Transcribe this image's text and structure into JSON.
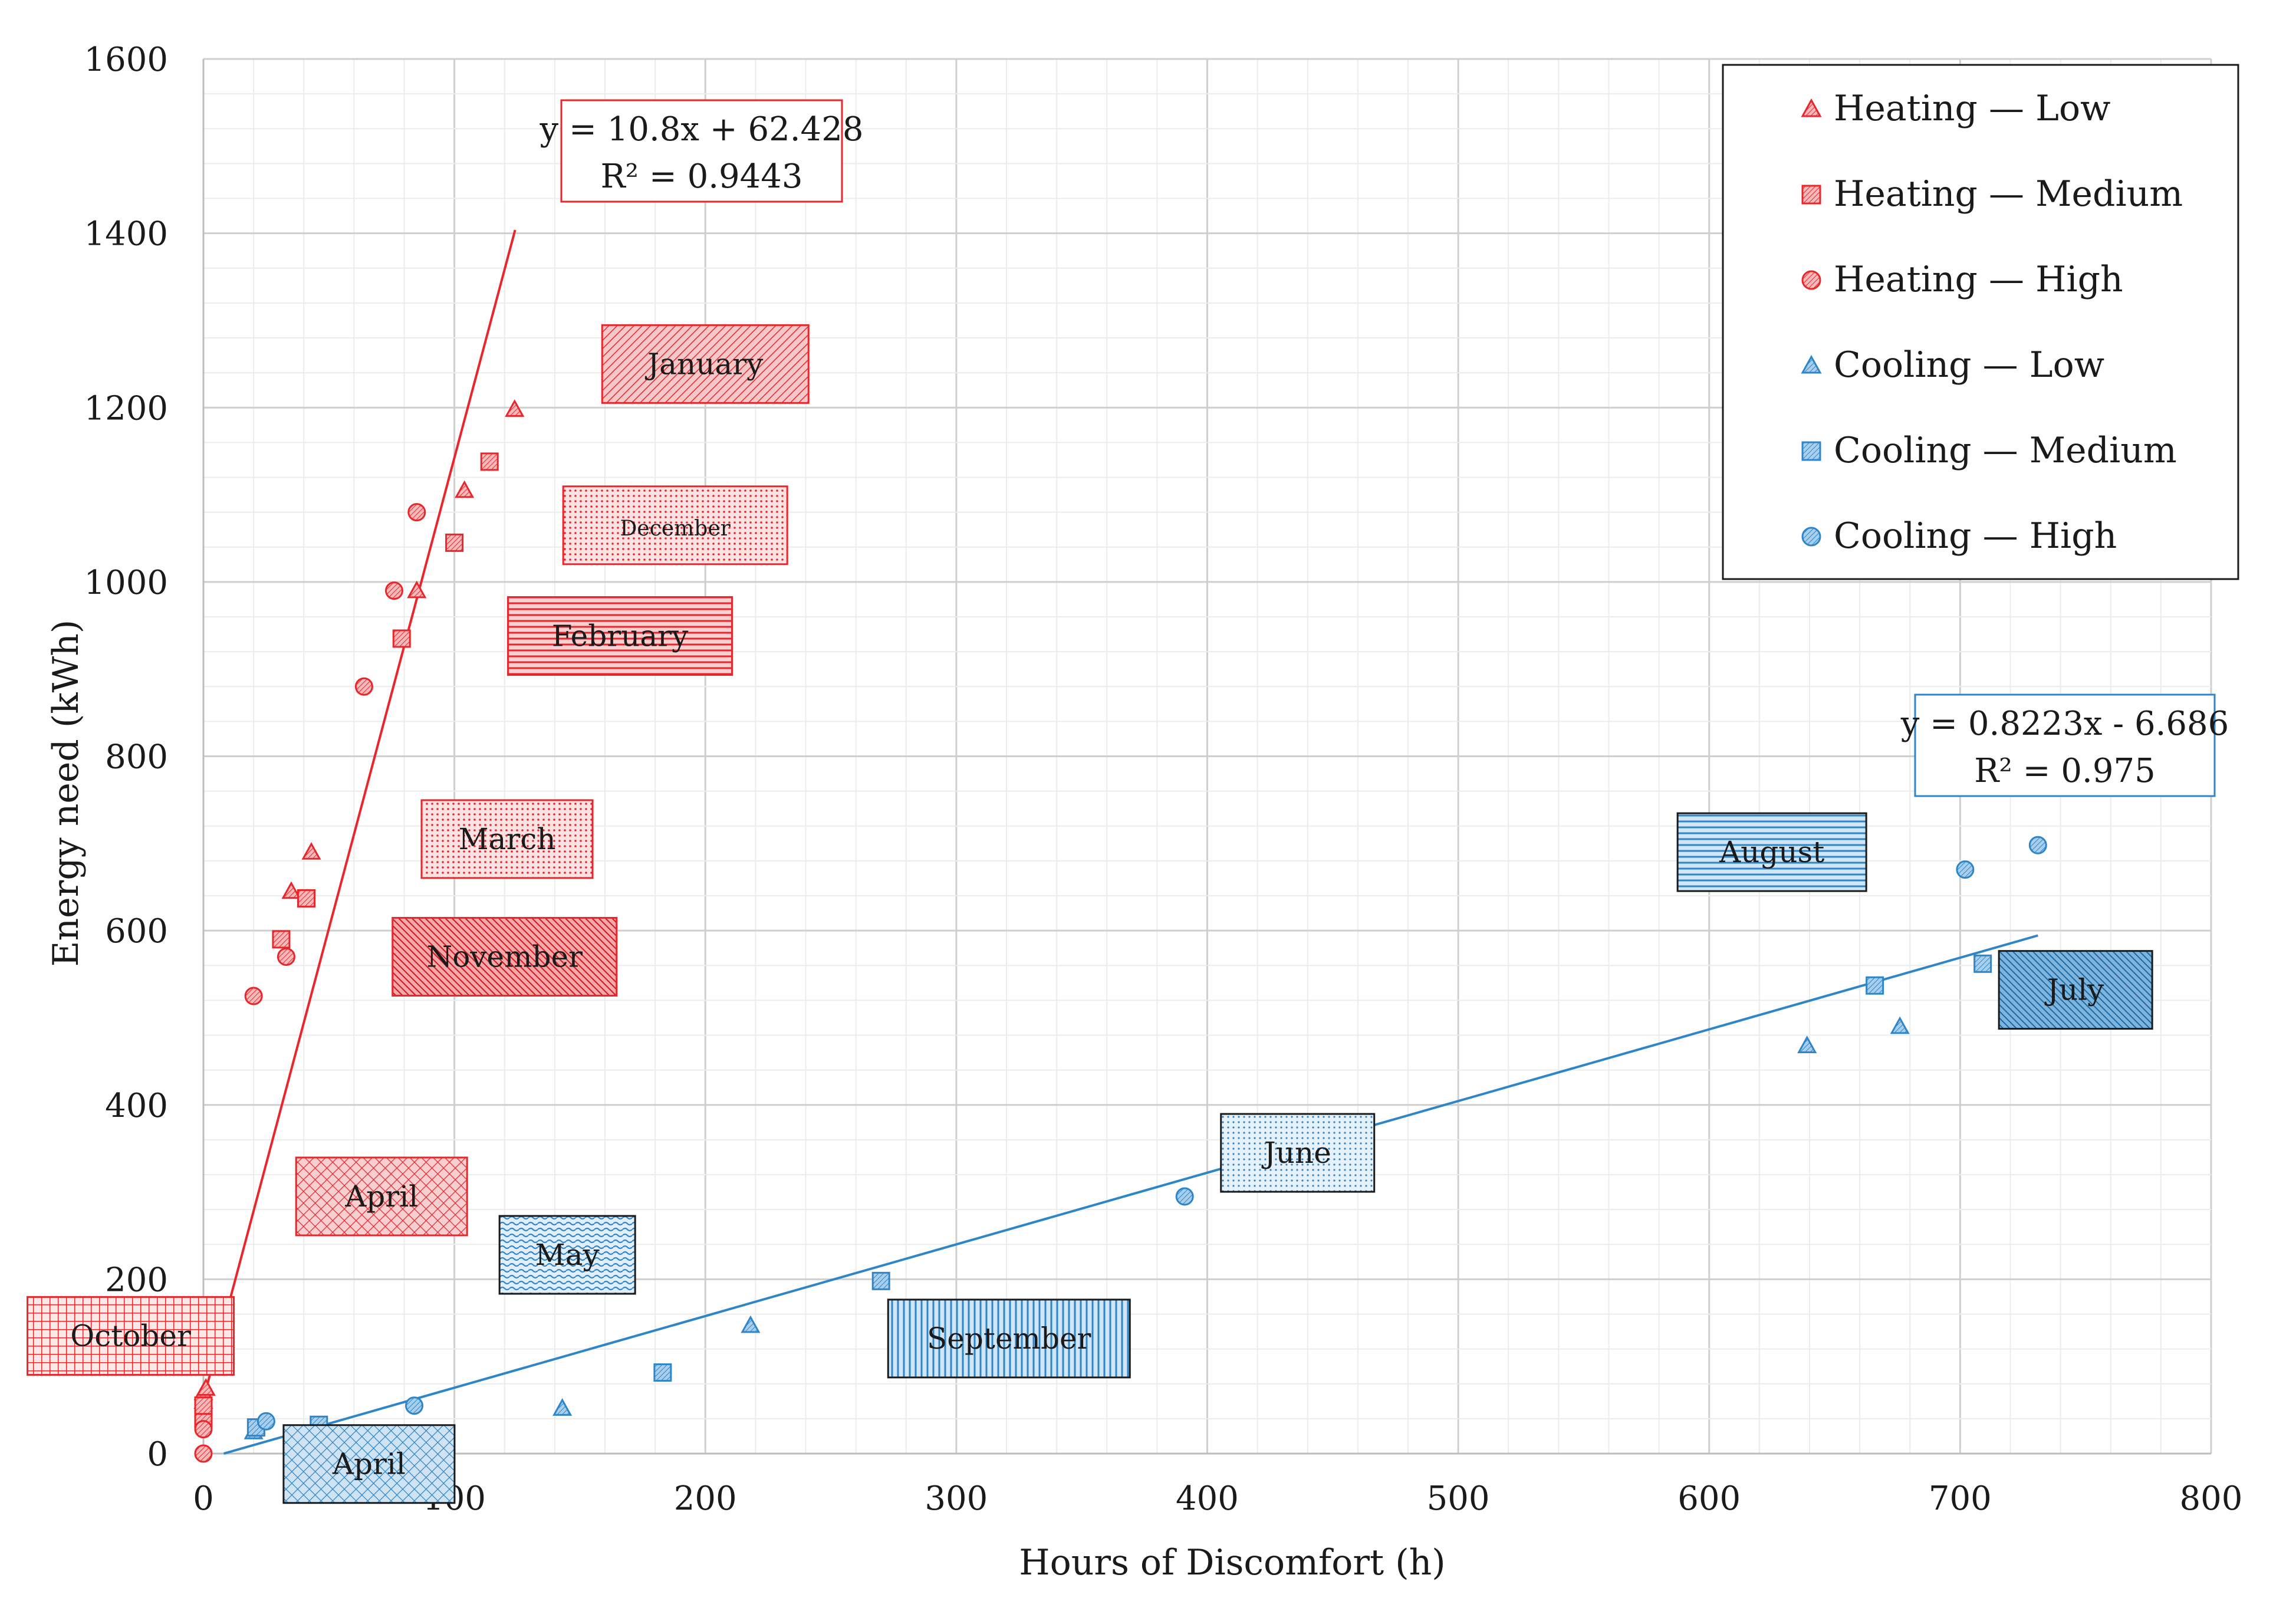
{
  "chart_data": {
    "type": "scatter",
    "xlabel": "Hours of Discomfort (h)",
    "ylabel": "Energy need (kWh)",
    "xlim": [
      0,
      800
    ],
    "ylim": [
      0,
      1600
    ],
    "xticks": [
      0,
      100,
      200,
      300,
      400,
      500,
      600,
      700,
      800
    ],
    "yticks": [
      0,
      200,
      400,
      600,
      800,
      1000,
      1200,
      1400,
      1600
    ],
    "grid": true,
    "legend_position": "top-right",
    "colors": {
      "heating": "#e8262b",
      "cooling": "#2e86c8"
    },
    "series": [
      {
        "name": "Heating",
        "level": "Low",
        "label": "Heating  —  Low",
        "group": "heating",
        "marker": "triangle",
        "points": [
          [
            0,
            60
          ],
          [
            0,
            70
          ],
          [
            1,
            75
          ],
          [
            35,
            645
          ],
          [
            43,
            690
          ],
          [
            85,
            990
          ],
          [
            104,
            1105
          ],
          [
            124,
            1198
          ]
        ]
      },
      {
        "name": "Heating",
        "level": "Medium",
        "label": "Heating  —  Medium",
        "group": "heating",
        "marker": "square",
        "points": [
          [
            0,
            40
          ],
          [
            0,
            55
          ],
          [
            31,
            590
          ],
          [
            41,
            637
          ],
          [
            79,
            935
          ],
          [
            100,
            1045
          ],
          [
            114,
            1138
          ]
        ]
      },
      {
        "name": "Heating",
        "level": "High",
        "label": "Heating  —  High",
        "group": "heating",
        "marker": "circle",
        "points": [
          [
            0,
            0
          ],
          [
            0,
            28
          ],
          [
            20,
            525
          ],
          [
            33,
            570
          ],
          [
            64,
            880
          ],
          [
            76,
            990
          ],
          [
            85,
            1080
          ]
        ]
      },
      {
        "name": "Cooling",
        "level": "Low",
        "label": "Cooling  —  Low",
        "group": "cooling",
        "marker": "triangle",
        "points": [
          [
            20,
            25
          ],
          [
            143,
            52
          ],
          [
            218,
            147
          ],
          [
            639,
            468
          ],
          [
            676,
            490
          ]
        ]
      },
      {
        "name": "Cooling",
        "level": "Medium",
        "label": "Cooling  —  Medium",
        "group": "cooling",
        "marker": "square",
        "points": [
          [
            21,
            30
          ],
          [
            46,
            33
          ],
          [
            183,
            93
          ],
          [
            270,
            198
          ],
          [
            666,
            537
          ],
          [
            709,
            562
          ]
        ]
      },
      {
        "name": "Cooling",
        "level": "High",
        "label": "Cooling  —  High",
        "group": "cooling",
        "marker": "circle",
        "points": [
          [
            25,
            37
          ],
          [
            84,
            55
          ],
          [
            391,
            295
          ],
          [
            702,
            670
          ],
          [
            731,
            698
          ]
        ]
      }
    ],
    "trendlines": [
      {
        "group": "heating",
        "equation": "y = 10.8x + 62.428",
        "r2": "R² = 0.9443",
        "slope": 10.8,
        "intercept": 62.428,
        "x_range": [
          0,
          124.2
        ]
      },
      {
        "group": "cooling",
        "equation": "y = 0.8223x - 6.686",
        "r2": "R² = 0.975",
        "slope": 0.8223,
        "intercept": -6.686,
        "x_range": [
          8.1,
          731
        ]
      }
    ],
    "month_labels": [
      {
        "text": "January",
        "group": "heating",
        "x": 200,
        "y": 1250,
        "pattern": "diag"
      },
      {
        "text": "December",
        "group": "heating",
        "x": 188,
        "y": 1065,
        "pattern": "dots",
        "small": true
      },
      {
        "text": "February",
        "group": "heating",
        "x": 166,
        "y": 938,
        "pattern": "hlines"
      },
      {
        "text": "March",
        "group": "heating",
        "x": 121,
        "y": 705,
        "pattern": "dots"
      },
      {
        "text": "November",
        "group": "heating",
        "x": 120,
        "y": 570,
        "pattern": "diag-dense"
      },
      {
        "text": "April",
        "group": "heating",
        "x": 71,
        "y": 295,
        "pattern": "cross"
      },
      {
        "text": "October",
        "group": "heating",
        "x": -29,
        "y": 135,
        "pattern": "grid"
      },
      {
        "text": "May",
        "group": "cooling",
        "x": 145,
        "y": 228,
        "pattern": "wave"
      },
      {
        "text": "April",
        "group": "cooling",
        "x": 66,
        "y": -12,
        "pattern": "cross"
      },
      {
        "text": "June",
        "group": "cooling",
        "x": 436,
        "y": 345,
        "pattern": "dots"
      },
      {
        "text": "September",
        "group": "cooling",
        "x": 321,
        "y": 132,
        "pattern": "vlines"
      },
      {
        "text": "August",
        "group": "cooling",
        "x": 625,
        "y": 690,
        "pattern": "hlines"
      },
      {
        "text": "July",
        "group": "cooling",
        "x": 746,
        "y": 532,
        "pattern": "diag-dense"
      }
    ]
  }
}
